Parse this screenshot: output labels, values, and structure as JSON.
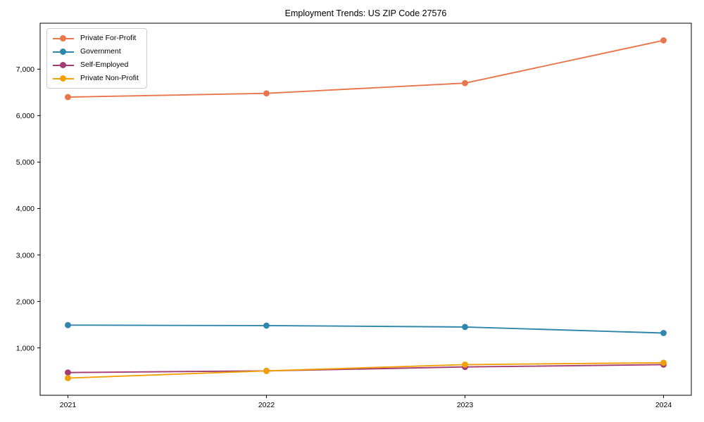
{
  "title": "Employment Trends: US ZIP Code 27576",
  "chart_data": {
    "type": "line",
    "title": "Employment Trends: US ZIP Code 27576",
    "xlabel": "",
    "ylabel": "",
    "x": [
      2021,
      2022,
      2023,
      2024
    ],
    "series": [
      {
        "name": "Private For-Profit",
        "color": "#E8764A",
        "values": [
          6400,
          6480,
          6700,
          7620
        ]
      },
      {
        "name": "Government",
        "color": "#2E86AB",
        "values": [
          1490,
          1480,
          1450,
          1320
        ]
      },
      {
        "name": "Self-Employed",
        "color": "#A23B72",
        "values": [
          470,
          505,
          590,
          640
        ]
      },
      {
        "name": "Private Non-Profit",
        "color": "#F1A008",
        "values": [
          350,
          505,
          640,
          680
        ]
      }
    ],
    "xticks": [
      {
        "value": 2021,
        "label": "2021"
      },
      {
        "value": 2022,
        "label": "2022"
      },
      {
        "value": 2023,
        "label": "2023"
      },
      {
        "value": 2024,
        "label": "2024"
      }
    ],
    "yticks": [
      {
        "value": 1000,
        "label": "1,000"
      },
      {
        "value": 2000,
        "label": "2,000"
      },
      {
        "value": 3000,
        "label": "3,000"
      },
      {
        "value": 4000,
        "label": "4,000"
      },
      {
        "value": 5000,
        "label": "5,000"
      },
      {
        "value": 6000,
        "label": "6,000"
      },
      {
        "value": 7000,
        "label": "7,000"
      }
    ],
    "xlim": [
      2020.86,
      2024.14
    ],
    "ylim": [
      -20,
      7990
    ],
    "grid": false,
    "legend_position": "upper left",
    "marker": "circle"
  }
}
